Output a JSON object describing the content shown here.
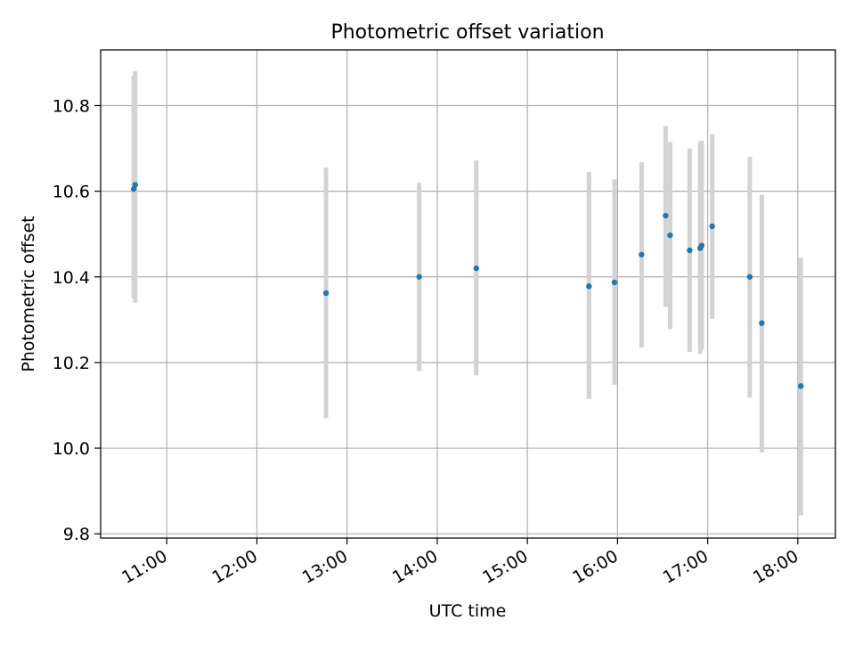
{
  "chart_data": {
    "type": "scatter",
    "title": "Photometric offset variation",
    "xlabel": "UTC time",
    "ylabel": "Photometric offset",
    "x_axis": {
      "kind": "time",
      "range": [
        "10:16",
        "18:25"
      ],
      "ticks": [
        "11:00",
        "12:00",
        "13:00",
        "14:00",
        "15:00",
        "16:00",
        "17:00",
        "18:00"
      ]
    },
    "y_axis": {
      "range": [
        9.79,
        10.93
      ],
      "ticks": [
        9.8,
        10.0,
        10.2,
        10.4,
        10.6,
        10.8
      ],
      "tick_labels": [
        "9.8",
        "10.0",
        "10.2",
        "10.4",
        "10.6",
        "10.8"
      ]
    },
    "grid": true,
    "series": [
      {
        "marker_color": "#1f77b4",
        "errorbar_color": "#d3d3d3",
        "points": [
          {
            "x": "10:38",
            "y": 10.605,
            "err_low": 10.35,
            "err_high": 10.87
          },
          {
            "x": "10:39",
            "y": 10.615,
            "err_low": 10.34,
            "err_high": 10.88
          },
          {
            "x": "12:46",
            "y": 10.362,
            "err_low": 10.07,
            "err_high": 10.655
          },
          {
            "x": "13:48",
            "y": 10.4,
            "err_low": 10.18,
            "err_high": 10.62
          },
          {
            "x": "14:26",
            "y": 10.42,
            "err_low": 10.17,
            "err_high": 10.672
          },
          {
            "x": "15:41",
            "y": 10.378,
            "err_low": 10.115,
            "err_high": 10.645
          },
          {
            "x": "15:58",
            "y": 10.387,
            "err_low": 10.148,
            "err_high": 10.628
          },
          {
            "x": "16:16",
            "y": 10.452,
            "err_low": 10.235,
            "err_high": 10.668
          },
          {
            "x": "16:32",
            "y": 10.543,
            "err_low": 10.33,
            "err_high": 10.752
          },
          {
            "x": "16:35",
            "y": 10.497,
            "err_low": 10.278,
            "err_high": 10.715
          },
          {
            "x": "16:48",
            "y": 10.462,
            "err_low": 10.225,
            "err_high": 10.7
          },
          {
            "x": "16:55",
            "y": 10.467,
            "err_low": 10.22,
            "err_high": 10.715
          },
          {
            "x": "16:56",
            "y": 10.473,
            "err_low": 10.23,
            "err_high": 10.718
          },
          {
            "x": "17:03",
            "y": 10.518,
            "err_low": 10.302,
            "err_high": 10.733
          },
          {
            "x": "17:28",
            "y": 10.4,
            "err_low": 10.118,
            "err_high": 10.68
          },
          {
            "x": "17:36",
            "y": 10.292,
            "err_low": 9.99,
            "err_high": 10.592
          },
          {
            "x": "18:02",
            "y": 10.145,
            "err_low": 9.843,
            "err_high": 10.445
          }
        ]
      }
    ]
  }
}
